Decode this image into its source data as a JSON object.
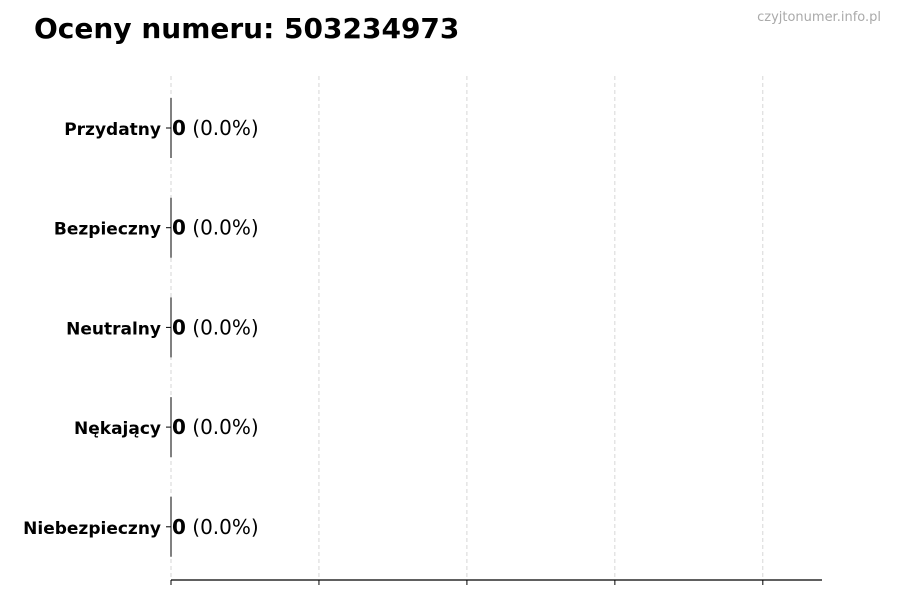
{
  "chart_data": {
    "type": "bar",
    "orientation": "horizontal",
    "title": "Oceny numeru: 503234973",
    "watermark": "czyjtonumer.info.pl",
    "categories": [
      "Przydatny",
      "Bezpieczny",
      "Neutralny",
      "Nękający",
      "Niebezpieczny"
    ],
    "values": [
      0,
      0,
      0,
      0,
      0
    ],
    "data_labels": [
      {
        "count": "0",
        "percent": "(0.0%)"
      },
      {
        "count": "0",
        "percent": "(0.0%)"
      },
      {
        "count": "0",
        "percent": "(0.0%)"
      },
      {
        "count": "0",
        "percent": "(0.0%)"
      },
      {
        "count": "0",
        "percent": "(0.0%)"
      }
    ],
    "xlabel": "",
    "ylabel": "",
    "xlim": [
      0,
      4.4
    ],
    "xticks": [
      0,
      1,
      2,
      3,
      4
    ],
    "xtick_labels_shown": false,
    "grid": "x dashed",
    "bar_color": "#000000",
    "grid_color": "#cccccc"
  }
}
